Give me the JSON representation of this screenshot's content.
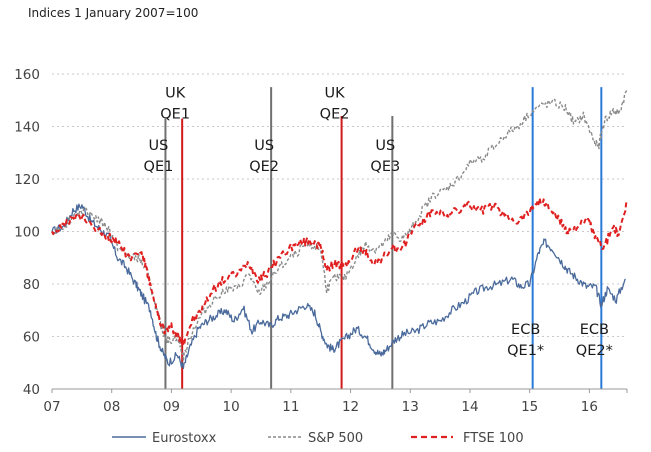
{
  "chart_data": {
    "type": "line",
    "title": "",
    "subtitle": "Indices  1 January 2007=100",
    "xlabel": "",
    "ylabel": "",
    "xlim": [
      2007.0,
      2016.63
    ],
    "ylim": [
      40,
      160
    ],
    "x_ticks": [
      {
        "value": 2007,
        "label": "07"
      },
      {
        "value": 2008,
        "label": "08"
      },
      {
        "value": 2009,
        "label": "09"
      },
      {
        "value": 2010,
        "label": "10"
      },
      {
        "value": 2011,
        "label": "11"
      },
      {
        "value": 2012,
        "label": "12"
      },
      {
        "value": 2013,
        "label": "13"
      },
      {
        "value": 2014,
        "label": "14"
      },
      {
        "value": 2015,
        "label": "15"
      },
      {
        "value": 2016,
        "label": "16"
      }
    ],
    "y_ticks": [
      {
        "value": 40,
        "label": "40"
      },
      {
        "value": 60,
        "label": "60"
      },
      {
        "value": 80,
        "label": "80"
      },
      {
        "value": 100,
        "label": "100"
      },
      {
        "value": 120,
        "label": "120"
      },
      {
        "value": 140,
        "label": "140"
      },
      {
        "value": 160,
        "label": "160"
      }
    ],
    "grid": true,
    "series": [
      {
        "name": "Eurostoxx",
        "color": "#4a6a9b",
        "style": "solid",
        "x": [
          2007.0,
          2007.2,
          2007.35,
          2007.5,
          2007.65,
          2007.8,
          2007.95,
          2008.1,
          2008.25,
          2008.4,
          2008.5,
          2008.65,
          2008.75,
          2008.85,
          2008.95,
          2009.1,
          2009.2,
          2009.3,
          2009.45,
          2009.6,
          2009.75,
          2009.9,
          2010.05,
          2010.2,
          2010.35,
          2010.5,
          2010.65,
          2010.8,
          2010.95,
          2011.1,
          2011.25,
          2011.4,
          2011.5,
          2011.6,
          2011.7,
          2011.8,
          2011.95,
          2012.1,
          2012.25,
          2012.4,
          2012.5,
          2012.6,
          2012.75,
          2012.9,
          2013.1,
          2013.3,
          2013.5,
          2013.7,
          2013.9,
          2014.1,
          2014.3,
          2014.5,
          2014.7,
          2014.85,
          2015.0,
          2015.15,
          2015.25,
          2015.4,
          2015.55,
          2015.65,
          2015.8,
          2015.95,
          2016.1,
          2016.2,
          2016.3,
          2016.45,
          2016.6
        ],
        "values": [
          100,
          102,
          108,
          110,
          104,
          101,
          98,
          90,
          86,
          80,
          76,
          70,
          60,
          54,
          50,
          53,
          48,
          55,
          63,
          66,
          68,
          70,
          66,
          71,
          62,
          66,
          64,
          67,
          68,
          70,
          72,
          69,
          62,
          57,
          55,
          57,
          60,
          63,
          60,
          55,
          53,
          55,
          59,
          61,
          62,
          65,
          66,
          70,
          73,
          77,
          79,
          80,
          82,
          79,
          80,
          92,
          96,
          93,
          88,
          85,
          82,
          79,
          79,
          72,
          78,
          74,
          82
        ]
      },
      {
        "name": "S&P 500",
        "color": "#8a8a8a",
        "style": "dashed",
        "x": [
          2007.0,
          2007.2,
          2007.4,
          2007.6,
          2007.8,
          2007.95,
          2008.1,
          2008.3,
          2008.45,
          2008.6,
          2008.75,
          2008.85,
          2008.95,
          2009.1,
          2009.2,
          2009.35,
          2009.5,
          2009.7,
          2009.9,
          2010.1,
          2010.3,
          2010.45,
          2010.6,
          2010.8,
          2011.0,
          2011.2,
          2011.35,
          2011.5,
          2011.6,
          2011.75,
          2011.9,
          2012.1,
          2012.25,
          2012.4,
          2012.55,
          2012.7,
          2012.85,
          2013.0,
          2013.2,
          2013.4,
          2013.6,
          2013.8,
          2014.0,
          2014.2,
          2014.4,
          2014.6,
          2014.8,
          2015.0,
          2015.2,
          2015.4,
          2015.6,
          2015.75,
          2015.9,
          2016.05,
          2016.15,
          2016.25,
          2016.4,
          2016.5,
          2016.63
        ],
        "values": [
          100,
          102,
          107,
          108,
          104,
          101,
          94,
          90,
          90,
          84,
          70,
          62,
          58,
          60,
          52,
          62,
          68,
          74,
          78,
          78,
          84,
          76,
          80,
          86,
          90,
          94,
          95,
          93,
          78,
          83,
          82,
          90,
          95,
          93,
          95,
          99,
          97,
          100,
          108,
          114,
          116,
          120,
          126,
          128,
          132,
          137,
          140,
          145,
          148,
          149,
          147,
          141,
          144,
          136,
          132,
          142,
          146,
          145,
          154
        ]
      },
      {
        "name": "FTSE 100",
        "color": "#e02020",
        "style": "dashed",
        "x": [
          2007.0,
          2007.2,
          2007.4,
          2007.6,
          2007.8,
          2007.95,
          2008.1,
          2008.3,
          2008.5,
          2008.6,
          2008.7,
          2008.8,
          2008.9,
          2009.0,
          2009.1,
          2009.2,
          2009.35,
          2009.5,
          2009.7,
          2009.9,
          2010.1,
          2010.3,
          2010.45,
          2010.6,
          2010.8,
          2011.0,
          2011.2,
          2011.4,
          2011.5,
          2011.6,
          2011.75,
          2011.9,
          2012.1,
          2012.25,
          2012.4,
          2012.55,
          2012.7,
          2012.85,
          2013.0,
          2013.2,
          2013.4,
          2013.6,
          2013.8,
          2014.0,
          2014.2,
          2014.4,
          2014.6,
          2014.8,
          2015.0,
          2015.15,
          2015.3,
          2015.5,
          2015.65,
          2015.8,
          2016.0,
          2016.1,
          2016.25,
          2016.4,
          2016.5,
          2016.63
        ],
        "values": [
          100,
          102,
          106,
          104,
          100,
          98,
          96,
          90,
          92,
          84,
          74,
          66,
          62,
          64,
          60,
          58,
          66,
          70,
          78,
          82,
          84,
          88,
          82,
          84,
          90,
          94,
          96,
          96,
          94,
          86,
          88,
          86,
          93,
          92,
          88,
          90,
          94,
          92,
          100,
          104,
          108,
          106,
          108,
          110,
          108,
          110,
          106,
          104,
          108,
          112,
          110,
          104,
          100,
          102,
          104,
          97,
          94,
          102,
          98,
          112
        ]
      }
    ],
    "vlines": [
      {
        "x": 2008.9,
        "color": "#707070",
        "top": 143,
        "label_lines": [
          "US",
          "QE1"
        ],
        "label_value_y": 131
      },
      {
        "x": 2009.18,
        "color": "#d11a1a",
        "top": 143,
        "label_lines": [
          "UK",
          "QE1"
        ],
        "label_value_y": 151
      },
      {
        "x": 2010.67,
        "color": "#707070",
        "top": 155,
        "label_lines": [
          "US",
          "QE2"
        ],
        "label_value_y": 131
      },
      {
        "x": 2011.85,
        "color": "#d11a1a",
        "top": 144,
        "label_lines": [
          "UK",
          "QE2"
        ],
        "label_value_y": 151
      },
      {
        "x": 2012.7,
        "color": "#707070",
        "top": 144,
        "label_lines": [
          "US",
          "QE3"
        ],
        "label_value_y": 131
      },
      {
        "x": 2015.05,
        "color": "#2a7ad8",
        "top": 155,
        "label_lines": [
          "ECB",
          "QE1*"
        ],
        "label_value_y": 61
      },
      {
        "x": 2016.2,
        "color": "#2a7ad8",
        "top": 155,
        "label_lines": [
          "ECB",
          "QE2*"
        ],
        "label_value_y": 61
      }
    ],
    "legend": {
      "placement": "bottom-center"
    }
  }
}
